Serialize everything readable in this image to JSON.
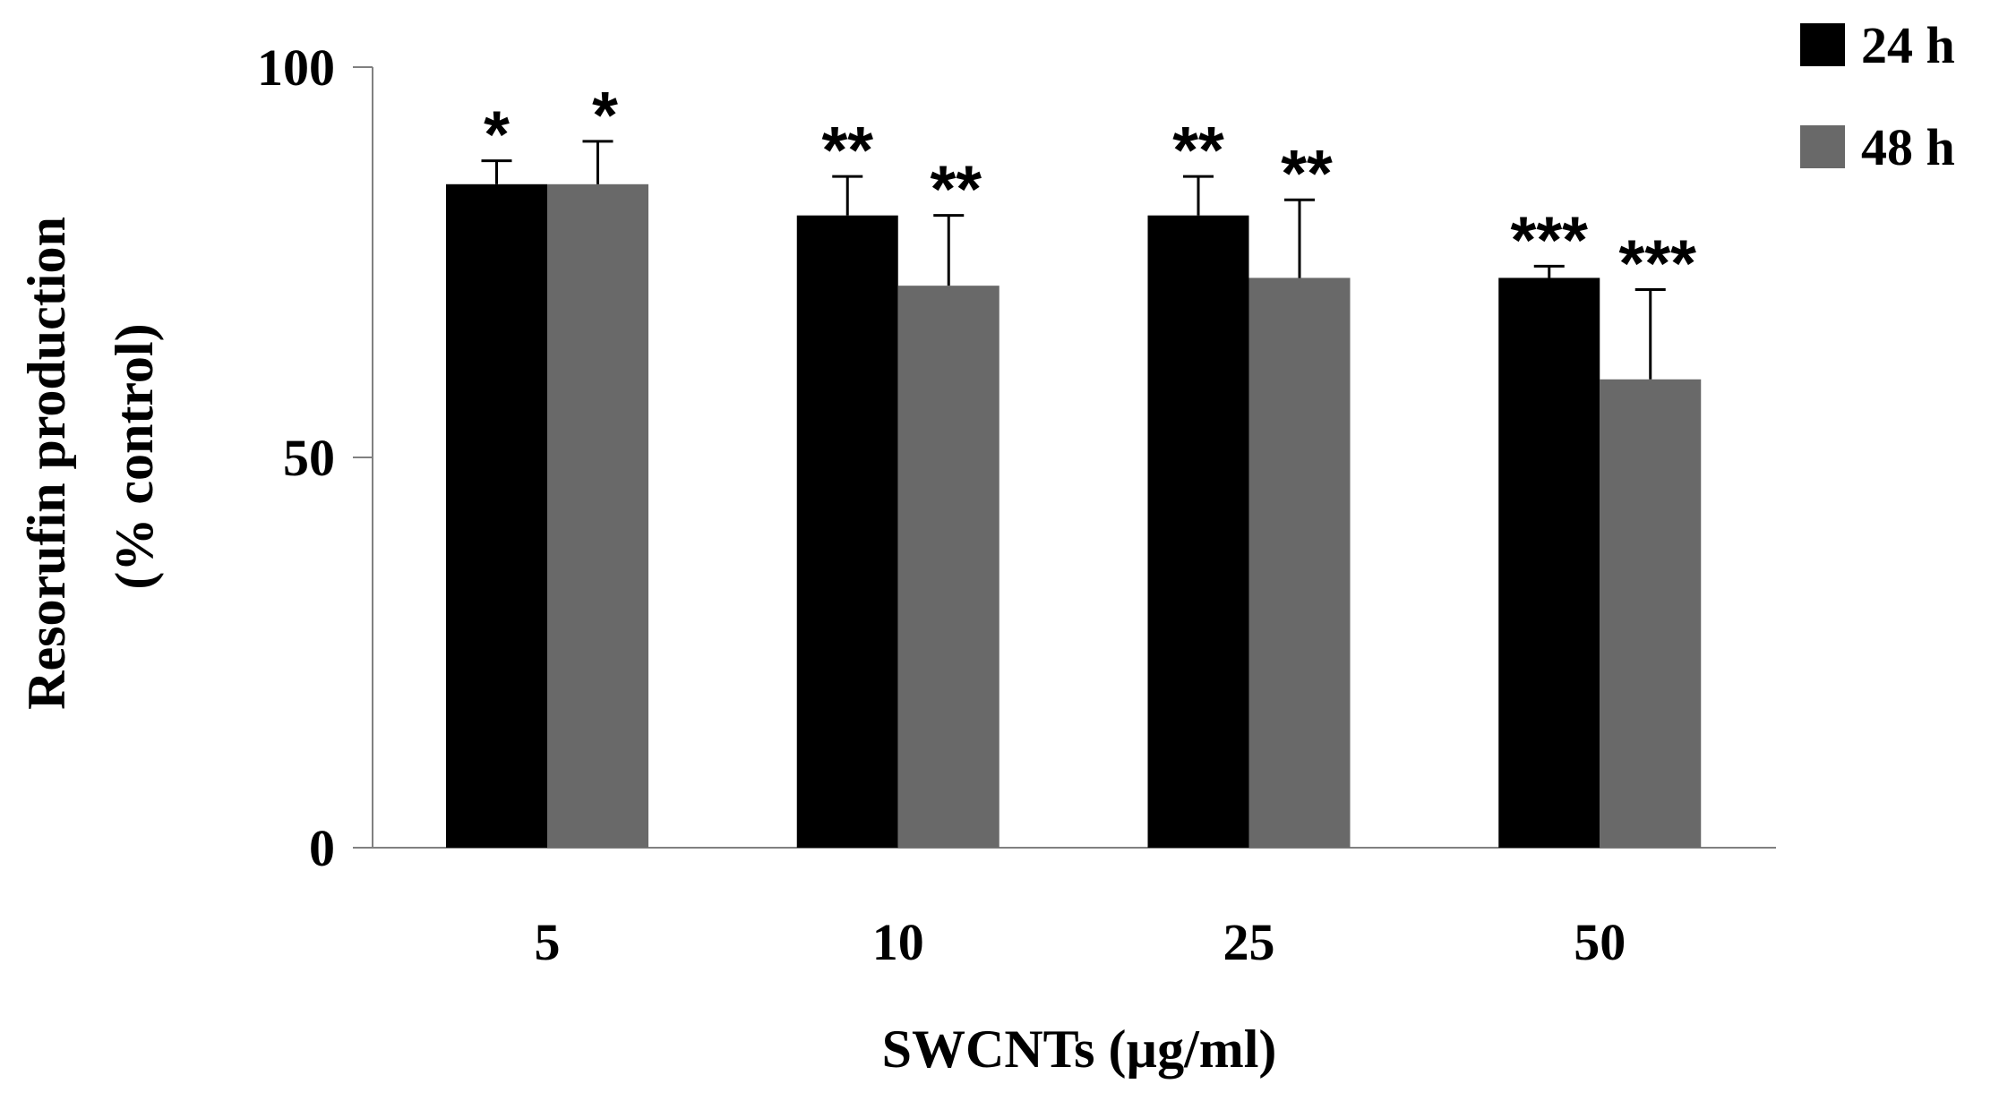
{
  "chart_data": {
    "type": "bar",
    "title": "",
    "xlabel": "SWCNTs (µg/ml)",
    "ylabel_lines": [
      "Resorufin production",
      "(% control)"
    ],
    "ylim": [
      0,
      100
    ],
    "yticks": [
      0,
      50,
      100
    ],
    "categories": [
      "5",
      "10",
      "25",
      "50"
    ],
    "series": [
      {
        "name": "24 h",
        "color": "#000000",
        "values": [
          85,
          81,
          81,
          73
        ],
        "errors": [
          3,
          5,
          5,
          1.5
        ],
        "significance": [
          "*",
          "**",
          "**",
          "***"
        ]
      },
      {
        "name": "48 h",
        "color": "#696969",
        "values": [
          85,
          72,
          73,
          60
        ],
        "errors": [
          5.5,
          9,
          10,
          11.5
        ],
        "significance": [
          "*",
          "**",
          "**",
          "***"
        ]
      }
    ],
    "legend": "top-right"
  }
}
